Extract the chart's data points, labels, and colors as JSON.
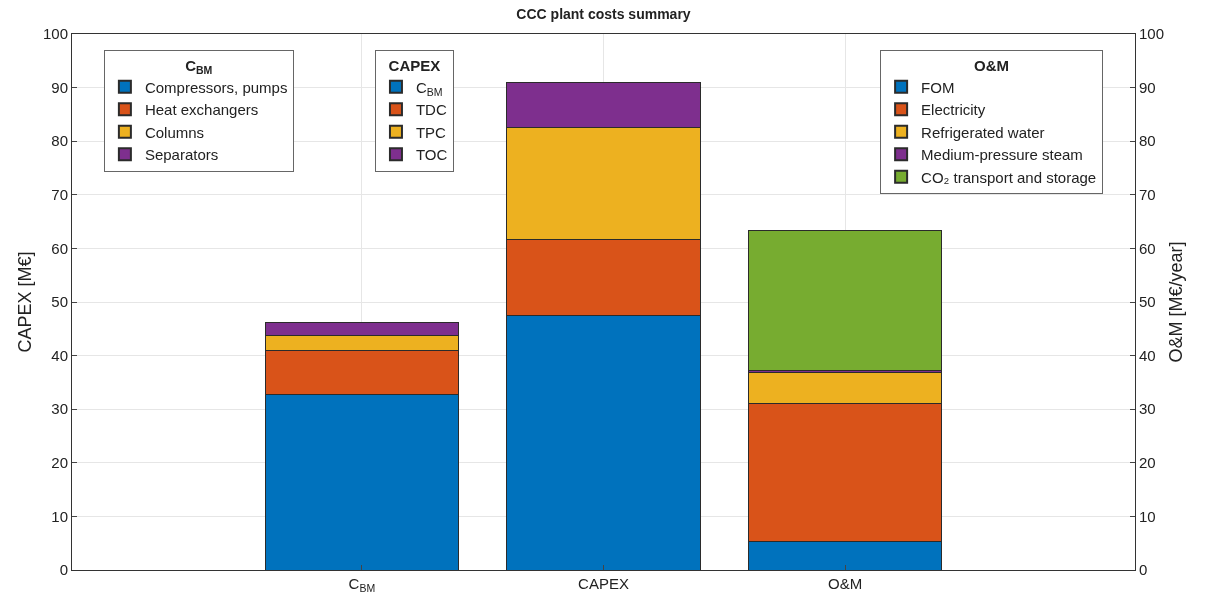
{
  "chart_data": {
    "type": "bar",
    "title": "CCC plant costs summary",
    "ylabel": "CAPEX [M€]",
    "y2label": "O&M [M€/year]",
    "categories": [
      "C$_{BM}$",
      "CAPEX",
      "O&M"
    ],
    "stacked": true,
    "series": [
      {
        "name": "Compressors, pumps",
        "color": "#0072bd",
        "values": [
          32.7,
          null,
          null
        ]
      },
      {
        "name": "Heat exchangers",
        "color": "#d95319",
        "values": [
          8.3,
          null,
          null
        ]
      },
      {
        "name": "Columns",
        "color": "#edb120",
        "values": [
          2.8,
          null,
          null
        ]
      },
      {
        "name": "Separators",
        "color": "#7e2f8e",
        "values": [
          2.4,
          null,
          null
        ]
      },
      {
        "name": "C$_{BM}$",
        "color": "#0072bd",
        "values": [
          null,
          47.5,
          null
        ]
      },
      {
        "name": "TDC",
        "color": "#d95319",
        "values": [
          null,
          14.1,
          null
        ]
      },
      {
        "name": "TPC",
        "color": "#edb120",
        "values": [
          null,
          21.0,
          null
        ]
      },
      {
        "name": "TOC",
        "color": "#7e2f8e",
        "values": [
          null,
          8.3,
          null
        ]
      },
      {
        "name": "FOM",
        "color": "#0072bd",
        "values": [
          null,
          null,
          5.3
        ],
        "axis": "y2"
      },
      {
        "name": "Electricity",
        "color": "#d95319",
        "values": [
          null,
          null,
          25.8
        ],
        "axis": "y2"
      },
      {
        "name": "Refrigerated water",
        "color": "#edb120",
        "values": [
          null,
          null,
          5.8
        ],
        "axis": "y2"
      },
      {
        "name": "Medium-pressure steam",
        "color": "#7e2f8e",
        "values": [
          null,
          null,
          0.3
        ],
        "axis": "y2"
      },
      {
        "name": "CO₂ transport and storage",
        "color": "#77ac30",
        "values": [
          null,
          null,
          26.1
        ],
        "axis": "y2"
      }
    ],
    "legend_title": [
      "C$_{BM}$",
      "CAPEX",
      "O&M"
    ],
    "legend": [
      "top left",
      "top left",
      "top right"
    ],
    "ylim": [
      0,
      100
    ],
    "yticks": [
      0,
      10,
      20,
      30,
      40,
      50,
      60,
      70,
      80,
      90,
      100
    ],
    "y2lim": [
      0,
      100
    ],
    "y2ticks": [
      0,
      10,
      20,
      30,
      40,
      50,
      60,
      70,
      80,
      90,
      100
    ],
    "grid": true
  }
}
